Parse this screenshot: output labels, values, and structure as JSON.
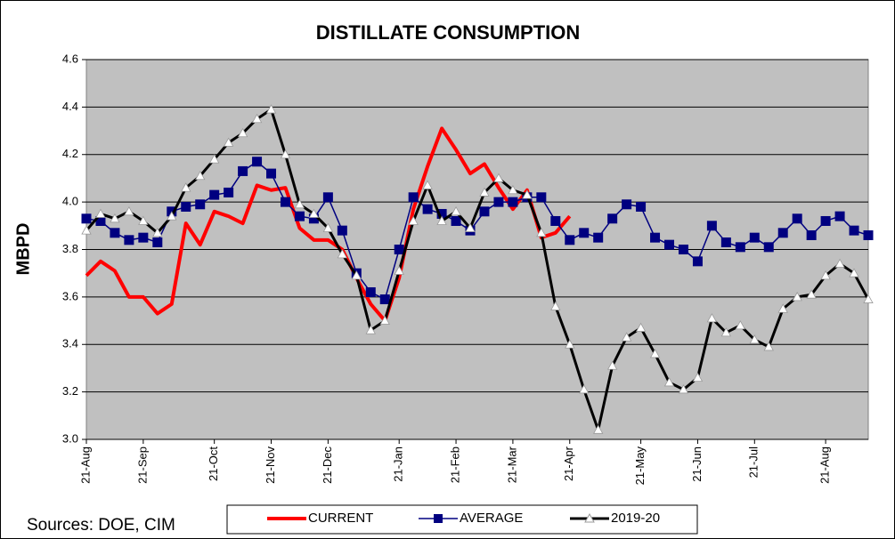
{
  "chart_data": {
    "type": "line",
    "title": "DISTILLATE CONSUMPTION",
    "y_label": "MBPD",
    "source": "Sources:  DOE, CIM",
    "categories": [
      "21-Aug",
      null,
      null,
      null,
      "21-Sep",
      null,
      null,
      null,
      null,
      "21-Oct",
      null,
      null,
      null,
      "21-Nov",
      null,
      null,
      null,
      "21-Dec",
      null,
      null,
      null,
      null,
      "21-Jan",
      null,
      null,
      null,
      "21-Feb",
      null,
      null,
      null,
      "21-Mar",
      null,
      null,
      null,
      "21-Apr",
      null,
      null,
      null,
      null,
      "21-May",
      null,
      null,
      null,
      "21-Jun",
      null,
      null,
      null,
      "21-Jul",
      null,
      null,
      null,
      null,
      "21-Aug",
      null,
      null,
      null
    ],
    "series": [
      {
        "name": "CURRENT",
        "color": "#ff0000",
        "marker": "none",
        "values": [
          3.69,
          3.75,
          3.71,
          3.6,
          3.6,
          3.53,
          3.57,
          3.91,
          3.82,
          3.96,
          3.94,
          3.91,
          4.07,
          4.05,
          4.06,
          3.89,
          3.84,
          3.84,
          3.8,
          3.68,
          3.57,
          3.5,
          3.68,
          3.97,
          4.15,
          4.31,
          4.22,
          4.12,
          4.16,
          4.06,
          3.97,
          4.05,
          3.85,
          3.87,
          3.94,
          null,
          null,
          null,
          null,
          null,
          null,
          null,
          null,
          null,
          null,
          null,
          null,
          null,
          null,
          null,
          null,
          null,
          null,
          null,
          null,
          null
        ]
      },
      {
        "name": "AVERAGE",
        "color": "#000080",
        "marker": "square",
        "values": [
          3.93,
          3.92,
          3.87,
          3.84,
          3.85,
          3.83,
          3.96,
          3.98,
          3.99,
          4.03,
          4.04,
          4.13,
          4.17,
          4.12,
          4.0,
          3.94,
          3.93,
          4.02,
          3.88,
          3.7,
          3.62,
          3.59,
          3.8,
          4.02,
          3.97,
          3.95,
          3.92,
          3.88,
          3.96,
          4.0,
          4.0,
          4.02,
          4.02,
          3.92,
          3.84,
          3.87,
          3.85,
          3.93,
          3.99,
          3.98,
          3.85,
          3.82,
          3.8,
          3.75,
          3.9,
          3.83,
          3.81,
          3.85,
          3.81,
          3.87,
          3.93,
          3.86,
          3.92,
          3.94,
          3.88,
          3.86
        ]
      },
      {
        "name": "2019-20",
        "color": "#000000",
        "marker": "triangle",
        "values": [
          3.88,
          3.95,
          3.93,
          3.96,
          3.92,
          3.87,
          3.94,
          4.06,
          4.11,
          4.18,
          4.25,
          4.29,
          4.35,
          4.39,
          4.2,
          3.99,
          3.95,
          3.89,
          3.78,
          3.69,
          3.46,
          3.5,
          3.71,
          3.92,
          4.07,
          3.92,
          3.96,
          3.89,
          4.04,
          4.1,
          4.05,
          4.03,
          3.87,
          3.56,
          3.4,
          3.21,
          3.04,
          3.31,
          3.43,
          3.47,
          3.36,
          3.24,
          3.21,
          3.26,
          3.51,
          3.45,
          3.48,
          3.42,
          3.39,
          3.55,
          3.6,
          3.61,
          3.69,
          3.74,
          3.7,
          3.59
        ]
      }
    ],
    "ylim": [
      3.0,
      4.6
    ],
    "yticks": [
      {
        "value": 3.0,
        "label": "3.0"
      },
      {
        "value": 3.2,
        "label": "3.2"
      },
      {
        "value": 3.4,
        "label": "3.4"
      },
      {
        "value": 3.6,
        "label": "3.6"
      },
      {
        "value": 3.8,
        "label": "3.8"
      },
      {
        "value": 4.0,
        "label": "4.0"
      },
      {
        "value": 4.2,
        "label": "4.2"
      },
      {
        "value": 4.4,
        "label": "4.4"
      },
      {
        "value": 4.6,
        "label": "4.6"
      }
    ],
    "grid": true,
    "legend": "bottom"
  }
}
